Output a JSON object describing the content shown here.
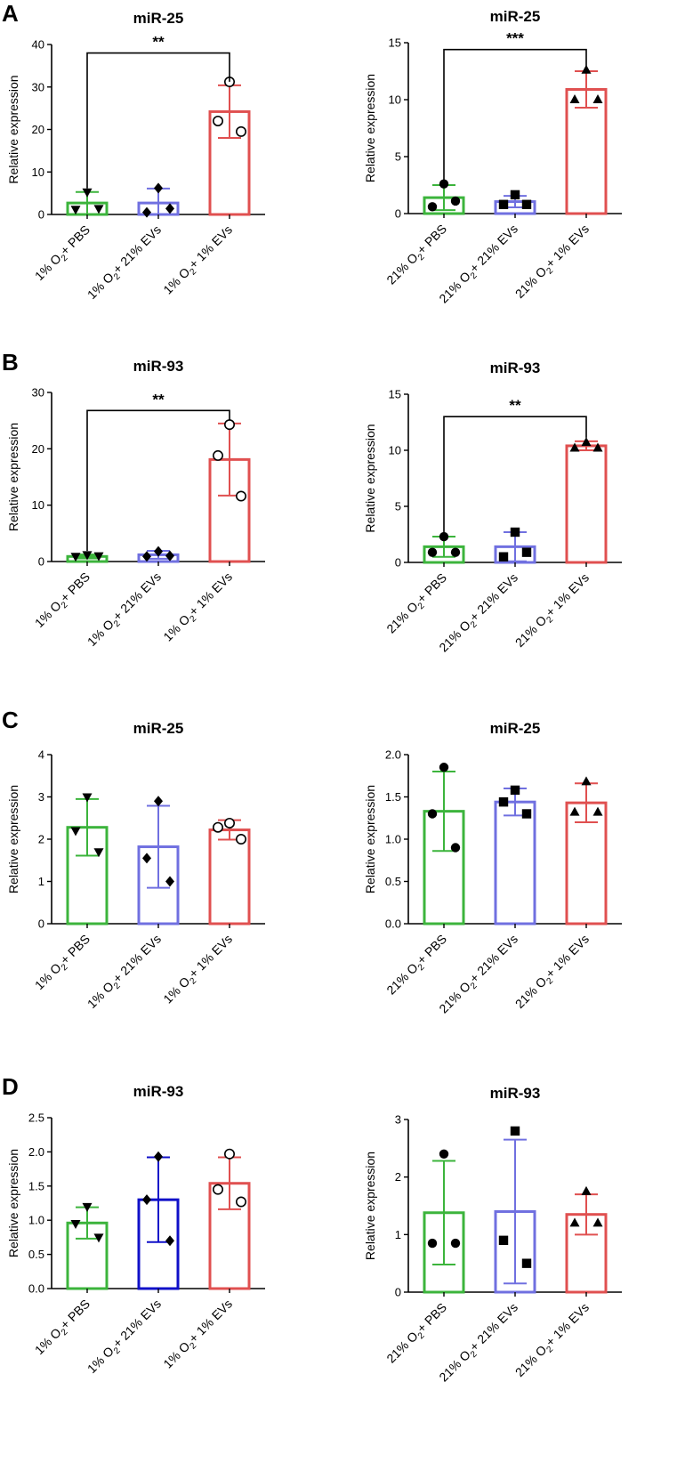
{
  "panels": [
    {
      "letter": "A"
    },
    {
      "letter": "B"
    },
    {
      "letter": "C"
    },
    {
      "letter": "D"
    }
  ],
  "chart_data": [
    {
      "type": "bar",
      "panel": "A",
      "title": "miR-25",
      "ylabel": "Relative expression",
      "ylim": [
        0,
        40
      ],
      "yticks": [
        0,
        10,
        20,
        30,
        40
      ],
      "tick_decimals": 0,
      "categories": [
        {
          "pre": "1% O",
          "sub": "2",
          "post": "+ PBS"
        },
        {
          "pre": "1% O",
          "sub": "2",
          "post": "+ 21% EVs"
        },
        {
          "pre": "1% O",
          "sub": "2",
          "post": "+ 1% EVs"
        }
      ],
      "colors": [
        "#3cb43c",
        "#7070e0",
        "#e05050"
      ],
      "markers": [
        "triangle-down",
        "diamond",
        "circle-open"
      ],
      "means": [
        2.7,
        2.7,
        24.2
      ],
      "errors": [
        2.6,
        3.4,
        6.2
      ],
      "points": [
        [
          5.3,
          1.2,
          1.4
        ],
        [
          6.2,
          0.5,
          1.4
        ],
        [
          31.2,
          22.0,
          19.5
        ]
      ],
      "significance": {
        "from": 0,
        "to": 2,
        "y": 38,
        "label": "**"
      }
    },
    {
      "type": "bar",
      "panel": "A",
      "title": "miR-25",
      "ylabel": "Relative expression",
      "ylim": [
        0,
        15
      ],
      "yticks": [
        0,
        5,
        10,
        15
      ],
      "tick_decimals": 0,
      "categories": [
        {
          "pre": "21% O",
          "sub": "2",
          "post": "+ PBS"
        },
        {
          "pre": "21% O",
          "sub": "2",
          "post": "+ 21% EVs"
        },
        {
          "pre": "21% O",
          "sub": "2",
          "post": "+ 1% EVs"
        }
      ],
      "colors": [
        "#3cb43c",
        "#7070e0",
        "#e05050"
      ],
      "markers": [
        "circle",
        "square",
        "triangle-up"
      ],
      "means": [
        1.4,
        1.05,
        10.9
      ],
      "errors": [
        1.1,
        0.5,
        1.6
      ],
      "points": [
        [
          2.6,
          0.6,
          1.1
        ],
        [
          1.65,
          0.8,
          0.8
        ],
        [
          12.6,
          10.0,
          10.0
        ]
      ],
      "significance": {
        "from": 0,
        "to": 2,
        "y": 14.4,
        "label": "***"
      }
    },
    {
      "type": "bar",
      "panel": "B",
      "title": "miR-93",
      "ylabel": "Relative expression",
      "ylim": [
        0,
        30
      ],
      "yticks": [
        0,
        10,
        20,
        30
      ],
      "tick_decimals": 0,
      "categories": [
        {
          "pre": "1% O",
          "sub": "2",
          "post": "+ PBS"
        },
        {
          "pre": "1% O",
          "sub": "2",
          "post": "+ 21% EVs"
        },
        {
          "pre": "1% O",
          "sub": "2",
          "post": "+ 1% EVs"
        }
      ],
      "colors": [
        "#3cb43c",
        "#7070e0",
        "#e05050"
      ],
      "markers": [
        "triangle-down",
        "diamond",
        "circle-open"
      ],
      "means": [
        0.9,
        1.2,
        18.1
      ],
      "errors": [
        0.35,
        0.7,
        6.4
      ],
      "points": [
        [
          1.2,
          0.9,
          1.0
        ],
        [
          1.8,
          0.9,
          1.0
        ],
        [
          24.3,
          18.8,
          11.6
        ]
      ],
      "significance": {
        "from": 0,
        "to": 2,
        "y": 26.8,
        "label": "**"
      }
    },
    {
      "type": "bar",
      "panel": "B",
      "title": "miR-93",
      "ylabel": "Relative expression",
      "ylim": [
        0,
        15
      ],
      "yticks": [
        0,
        5,
        10,
        15
      ],
      "tick_decimals": 0,
      "categories": [
        {
          "pre": "21% O",
          "sub": "2",
          "post": "+ PBS"
        },
        {
          "pre": "21% O",
          "sub": "2",
          "post": "+ 21% EVs"
        },
        {
          "pre": "21% O",
          "sub": "2",
          "post": "+ 1% EVs"
        }
      ],
      "colors": [
        "#3cb43c",
        "#7070e0",
        "#e05050"
      ],
      "markers": [
        "circle",
        "square",
        "triangle-up"
      ],
      "means": [
        1.4,
        1.4,
        10.4
      ],
      "errors": [
        0.9,
        1.3,
        0.4
      ],
      "points": [
        [
          2.3,
          0.9,
          0.9
        ],
        [
          2.7,
          0.5,
          0.9
        ],
        [
          10.7,
          10.2,
          10.2
        ]
      ],
      "significance": {
        "from": 0,
        "to": 2,
        "y": 13.0,
        "label": "**"
      }
    },
    {
      "type": "bar",
      "panel": "C",
      "title": "miR-25",
      "ylabel": "Relative expression",
      "ylim": [
        0,
        4
      ],
      "yticks": [
        0,
        1,
        2,
        3,
        4
      ],
      "tick_decimals": 0,
      "categories": [
        {
          "pre": "1% O",
          "sub": "2",
          "post": "+ PBS"
        },
        {
          "pre": "1% O",
          "sub": "2",
          "post": "+ 21% EVs"
        },
        {
          "pre": "1% O",
          "sub": "2",
          "post": "+ 1% EVs"
        }
      ],
      "colors": [
        "#3cb43c",
        "#7070e0",
        "#e05050"
      ],
      "markers": [
        "triangle-down",
        "diamond",
        "circle-open"
      ],
      "means": [
        2.28,
        1.82,
        2.22
      ],
      "errors": [
        0.67,
        0.97,
        0.23
      ],
      "points": [
        [
          3.0,
          2.2,
          1.7
        ],
        [
          2.9,
          1.55,
          1.0
        ],
        [
          2.38,
          2.28,
          2.0
        ]
      ],
      "significance": null
    },
    {
      "type": "bar",
      "panel": "C",
      "title": "miR-25",
      "ylabel": "Relative expression",
      "ylim": [
        0,
        2.0
      ],
      "yticks": [
        0,
        0.5,
        1.0,
        1.5,
        2.0
      ],
      "tick_decimals": 1,
      "categories": [
        {
          "pre": "21% O",
          "sub": "2",
          "post": "+ PBS"
        },
        {
          "pre": "21% O",
          "sub": "2",
          "post": "+ 21% EVs"
        },
        {
          "pre": "21% O",
          "sub": "2",
          "post": "+ 1% EVs"
        }
      ],
      "colors": [
        "#3cb43c",
        "#7070e0",
        "#e05050"
      ],
      "markers": [
        "circle",
        "square",
        "triangle-up"
      ],
      "means": [
        1.33,
        1.44,
        1.43
      ],
      "errors": [
        0.47,
        0.16,
        0.23
      ],
      "points": [
        [
          1.85,
          1.3,
          0.9
        ],
        [
          1.58,
          1.44,
          1.3
        ],
        [
          1.68,
          1.32,
          1.32
        ]
      ],
      "significance": null
    },
    {
      "type": "bar",
      "panel": "D",
      "title": "miR-93",
      "ylabel": "Relative expression",
      "ylim": [
        0,
        2.5
      ],
      "yticks": [
        0,
        0.5,
        1.0,
        1.5,
        2.0,
        2.5
      ],
      "tick_decimals": 1,
      "categories": [
        {
          "pre": "1% O",
          "sub": "2",
          "post": "+ PBS"
        },
        {
          "pre": "1% O",
          "sub": "2",
          "post": "+ 21% EVs"
        },
        {
          "pre": "1% O",
          "sub": "2",
          "post": "+ 1% EVs"
        }
      ],
      "colors": [
        "#3cb43c",
        "#1010c8",
        "#e05050"
      ],
      "markers": [
        "triangle-down",
        "diamond",
        "circle-open"
      ],
      "means": [
        0.96,
        1.3,
        1.54
      ],
      "errors": [
        0.23,
        0.62,
        0.38
      ],
      "points": [
        [
          1.2,
          0.95,
          0.75
        ],
        [
          1.93,
          1.3,
          0.7
        ],
        [
          1.97,
          1.45,
          1.27
        ]
      ],
      "significance": null
    },
    {
      "type": "bar",
      "panel": "D",
      "title": "miR-93",
      "ylabel": "Relative expression",
      "ylim": [
        0,
        3
      ],
      "yticks": [
        0,
        1,
        2,
        3
      ],
      "tick_decimals": 0,
      "categories": [
        {
          "pre": "21% O",
          "sub": "2",
          "post": "+ PBS"
        },
        {
          "pre": "21% O",
          "sub": "2",
          "post": "+ 21% EVs"
        },
        {
          "pre": "21% O",
          "sub": "2",
          "post": "+ 1% EVs"
        }
      ],
      "colors": [
        "#3cb43c",
        "#7070e0",
        "#e05050"
      ],
      "markers": [
        "circle",
        "square",
        "triangle-up"
      ],
      "means": [
        1.38,
        1.4,
        1.35
      ],
      "errors": [
        0.9,
        1.25,
        0.35
      ],
      "points": [
        [
          2.4,
          0.85,
          0.85
        ],
        [
          2.8,
          0.9,
          0.5
        ],
        [
          1.75,
          1.2,
          1.2
        ]
      ],
      "significance": null
    }
  ]
}
